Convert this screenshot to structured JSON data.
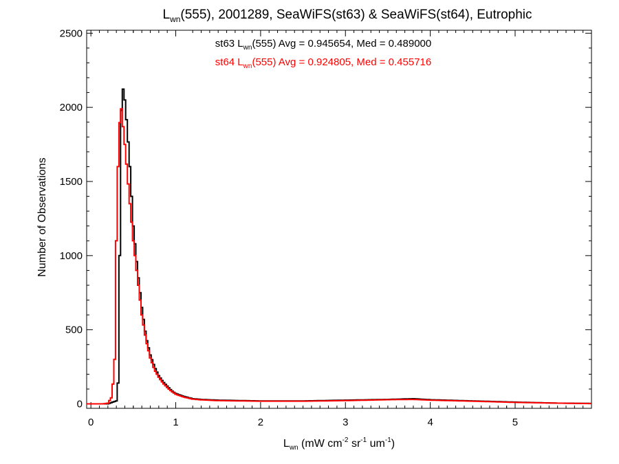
{
  "chart_data": {
    "type": "line",
    "title": {
      "prefix": "L",
      "prefix_sub": "wn",
      "rest": "(555), 2001289, SeaWiFS(st63) & SeaWiFS(st64), Eutrophic"
    },
    "xlabel": {
      "base": "L",
      "base_sub": "wn",
      "p1": " (mW cm",
      "sup1": "-2",
      "p2": " sr",
      "sup2": "-1",
      "p3": " um",
      "sup3": "-1",
      "p4": ")"
    },
    "ylabel": "Number of Observations",
    "xlim": [
      -0.05,
      5.9
    ],
    "ylim": [
      -30,
      2520
    ],
    "x_ticks": [
      0,
      1,
      2,
      3,
      4,
      5
    ],
    "y_ticks": [
      0,
      500,
      1000,
      1500,
      2000,
      2500
    ],
    "x_tick_labels": [
      "0",
      "1",
      "2",
      "3",
      "4",
      "5"
    ],
    "y_tick_labels": [
      "0",
      "500",
      "1000",
      "1500",
      "2000",
      "2500"
    ],
    "annotations": [
      {
        "pre": "st63 L",
        "sub": "wn",
        "post": "(555) Avg = 0.945654, Med = 0.489000",
        "color": "#000000"
      },
      {
        "pre": "st64 L",
        "sub": "wn",
        "post": "(555) Avg = 0.924805, Med = 0.455716",
        "color": "#ff0000"
      }
    ],
    "series": [
      {
        "color": "#000000",
        "x": [
          -0.05,
          0.2,
          0.3,
          0.33,
          0.35,
          0.37,
          0.4,
          0.43,
          0.46,
          0.5,
          0.55,
          0.6,
          0.65,
          0.7,
          0.75,
          0.8,
          0.85,
          0.9,
          0.95,
          1.0,
          1.1,
          1.2,
          1.3,
          1.5,
          2.0,
          2.5,
          3.0,
          3.5,
          3.8,
          4.0,
          4.5,
          5.0,
          5.5,
          5.9
        ],
        "y": [
          0,
          0,
          20,
          200,
          1800,
          2160,
          2050,
          1850,
          1600,
          1200,
          900,
          650,
          450,
          330,
          250,
          190,
          150,
          120,
          90,
          70,
          50,
          35,
          30,
          25,
          20,
          20,
          25,
          30,
          35,
          28,
          20,
          12,
          5,
          3
        ]
      },
      {
        "color": "#ff0000",
        "x": [
          -0.05,
          0.15,
          0.2,
          0.25,
          0.28,
          0.3,
          0.33,
          0.36,
          0.4,
          0.43,
          0.46,
          0.5,
          0.55,
          0.6,
          0.65,
          0.7,
          0.75,
          0.8,
          0.85,
          0.9,
          0.95,
          1.0,
          1.1,
          1.2,
          1.3,
          1.5,
          2.0,
          2.5,
          3.0,
          3.5,
          3.8,
          4.0,
          4.5,
          5.0,
          5.5,
          5.9
        ],
        "y": [
          0,
          0,
          5,
          50,
          300,
          1100,
          1850,
          1990,
          1750,
          1550,
          1350,
          1100,
          850,
          600,
          430,
          310,
          230,
          180,
          140,
          110,
          85,
          65,
          45,
          32,
          27,
          22,
          18,
          18,
          22,
          28,
          30,
          25,
          18,
          10,
          5,
          2
        ]
      }
    ]
  }
}
